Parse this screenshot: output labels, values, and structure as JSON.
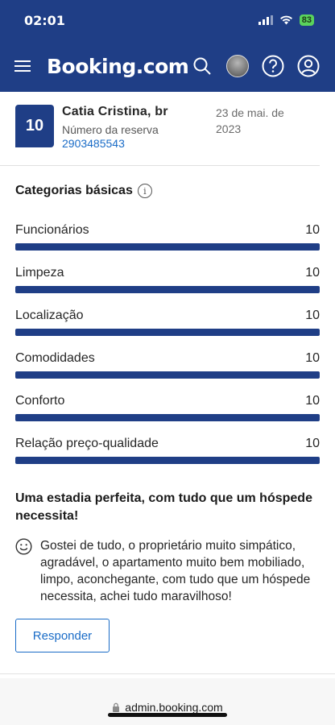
{
  "status_bar": {
    "time": "02:01",
    "battery": "83"
  },
  "header": {
    "brand": "Booking.com"
  },
  "review": {
    "score": "10",
    "guest_name": "Catia Cristina, br",
    "reservation_label": "Número da reserva",
    "reservation_number": "2903485543",
    "date": "23 de mai. de 2023"
  },
  "categories": {
    "title": "Categorias básicas",
    "items": [
      {
        "label": "Funcionários",
        "score": "10",
        "fill": 1.0
      },
      {
        "label": "Limpeza",
        "score": "10",
        "fill": 1.0
      },
      {
        "label": "Localização",
        "score": "10",
        "fill": 1.0
      },
      {
        "label": "Comodidades",
        "score": "10",
        "fill": 1.0
      },
      {
        "label": "Conforto",
        "score": "10",
        "fill": 1.0
      },
      {
        "label": "Relação preço-qualidade",
        "score": "10",
        "fill": 1.0
      }
    ]
  },
  "review_body": {
    "title": "Uma estadia perfeita, com tudo que um hóspede necessita!",
    "text": "Gostei de tudo, o proprietário muito simpático, agradável, o apartamento muito bem mobiliado, limpo, aconchegante, com tudo que um hóspede necessita, achei tudo maravilhoso!",
    "respond_label": "Responder"
  },
  "browser": {
    "url": "admin.booking.com"
  },
  "colors": {
    "brand_blue": "#1f3e86",
    "link_blue": "#1a6cc7"
  }
}
